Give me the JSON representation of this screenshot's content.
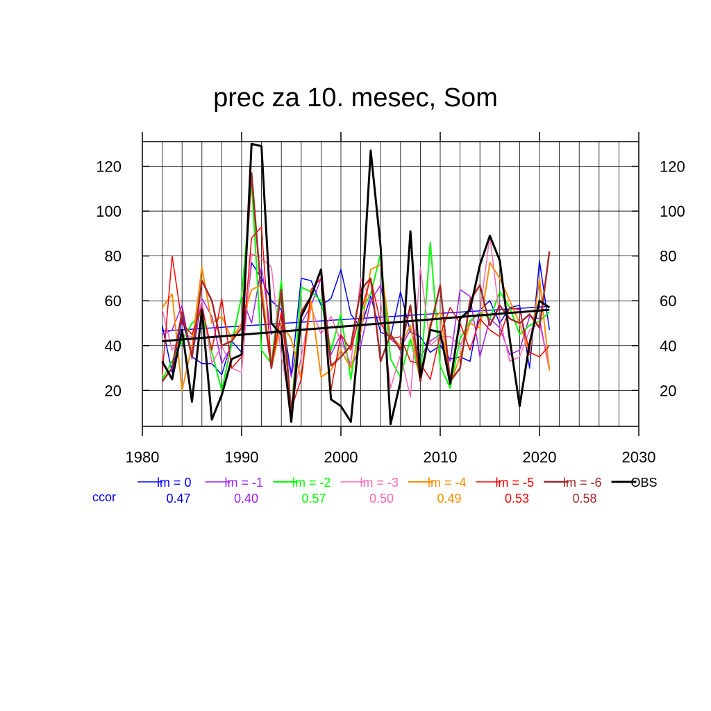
{
  "chart_data": {
    "type": "line",
    "title": "prec za 10. mesec, Som",
    "xlim": [
      1980,
      2030
    ],
    "ylim": [
      4,
      131
    ],
    "xticks": [
      1980,
      1990,
      2000,
      2010,
      2020,
      2030
    ],
    "yticks": [
      20,
      40,
      60,
      80,
      100,
      120
    ],
    "grid": true,
    "x": [
      1982,
      1983,
      1984,
      1985,
      1986,
      1987,
      1988,
      1989,
      1990,
      1991,
      1992,
      1993,
      1994,
      1995,
      1996,
      1997,
      1998,
      1999,
      2000,
      2001,
      2002,
      2003,
      2004,
      2005,
      2006,
      2007,
      2008,
      2009,
      2010,
      2011,
      2012,
      2013,
      2014,
      2015,
      2016,
      2017,
      2018,
      2019,
      2020,
      2021
    ],
    "series": [
      {
        "name": "lm = 0",
        "color": "#0000ff",
        "width": 1.5,
        "values": [
          49,
          28,
          52,
          35,
          32,
          32,
          27,
          42,
          37,
          77,
          70,
          60,
          56,
          27,
          70,
          69,
          58,
          61,
          74,
          54,
          48,
          62,
          46,
          44,
          64,
          46,
          44,
          37,
          40,
          34,
          35,
          33,
          56,
          60,
          50,
          57,
          58,
          30,
          78,
          47
        ],
        "trend": [
          46.5,
          57.5
        ]
      },
      {
        "name": "lm = -1",
        "color": "#a020f0",
        "width": 1.5,
        "values": [
          45,
          47,
          58,
          34,
          61,
          53,
          32,
          40,
          62,
          50,
          75,
          45,
          50,
          26,
          50,
          58,
          70,
          36,
          45,
          30,
          40,
          60,
          67,
          43,
          39,
          47,
          35,
          42,
          45,
          33,
          65,
          62,
          35,
          52,
          48,
          36,
          38,
          53,
          52,
          29
        ]
      },
      {
        "name": "lm = -2",
        "color": "#00ff00",
        "width": 2,
        "values": [
          25,
          33,
          42,
          50,
          54,
          37,
          20,
          41,
          62,
          113,
          38,
          32,
          69,
          10,
          66,
          64,
          60,
          38,
          54,
          25,
          55,
          63,
          81,
          34,
          26,
          43,
          25,
          86,
          31,
          21,
          43,
          51,
          55,
          52,
          64,
          57,
          45,
          49,
          51,
          55
        ]
      },
      {
        "name": "lm = -3",
        "color": "#ff69b4",
        "width": 1.5,
        "values": [
          56,
          38,
          45,
          44,
          60,
          32,
          40,
          30,
          28,
          81,
          79,
          75,
          35,
          12,
          35,
          57,
          45,
          53,
          42,
          32,
          70,
          60,
          60,
          21,
          36,
          17,
          75,
          40,
          44,
          44,
          40,
          50,
          55,
          89,
          52,
          33,
          35,
          47,
          50,
          29
        ]
      },
      {
        "name": "lm = -4",
        "color": "#ff8c00",
        "width": 2,
        "values": [
          57,
          63,
          20,
          40,
          75,
          50,
          53,
          43,
          50,
          65,
          67,
          30,
          50,
          43,
          25,
          60,
          26,
          29,
          38,
          30,
          46,
          74,
          76,
          44,
          40,
          49,
          24,
          50,
          55,
          23,
          35,
          50,
          48,
          77,
          70,
          60,
          50,
          36,
          70,
          29
        ]
      },
      {
        "name": "lm = -5",
        "color": "#ff0000",
        "width": 1.5,
        "values": [
          27,
          80,
          50,
          45,
          57,
          38,
          61,
          30,
          35,
          88,
          93,
          30,
          55,
          12,
          25,
          65,
          70,
          20,
          45,
          38,
          55,
          70,
          50,
          43,
          44,
          33,
          32,
          25,
          45,
          57,
          50,
          38,
          52,
          47,
          44,
          57,
          56,
          37,
          35,
          40
        ]
      },
      {
        "name": "lm = -6",
        "color": "#a52a2a",
        "width": 2.5,
        "values": [
          24,
          30,
          55,
          35,
          69,
          60,
          40,
          42,
          48,
          117,
          62,
          30,
          65,
          10,
          55,
          62,
          74,
          31,
          35,
          40,
          65,
          70,
          33,
          45,
          38,
          58,
          24,
          48,
          67,
          24,
          30,
          60,
          67,
          49,
          58,
          52,
          50,
          54,
          48,
          82
        ]
      },
      {
        "name": "OBS",
        "color": "#000000",
        "width": 3,
        "values": [
          33,
          25,
          47,
          15,
          56,
          7,
          18,
          34,
          36,
          130,
          129,
          50,
          45,
          6,
          53,
          62,
          74,
          16,
          13,
          6,
          52,
          127,
          84,
          5,
          24,
          91,
          26,
          47,
          46,
          23,
          52,
          56,
          76,
          89,
          78,
          43,
          13,
          41,
          60,
          57
        ],
        "trend": [
          42,
          56
        ]
      }
    ],
    "legend_label_prefix": "lm",
    "ccor_label": "ccor",
    "ccor_values": [
      "0.47",
      "0.40",
      "0.57",
      "0.50",
      "0.49",
      "0.53",
      "0.58"
    ]
  }
}
